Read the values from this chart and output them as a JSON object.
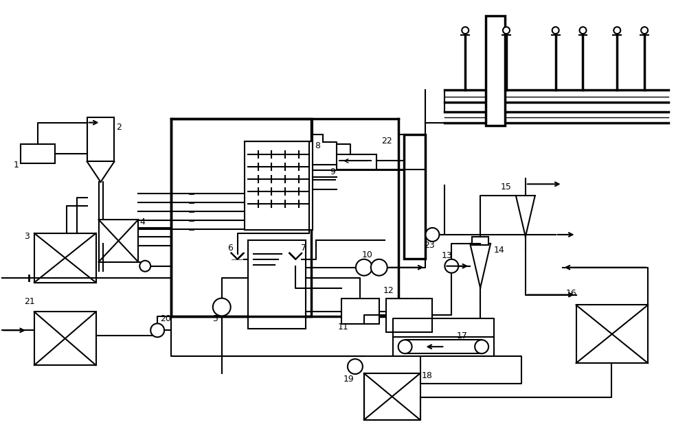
{
  "bg": "#ffffff",
  "lc": "#000000",
  "lw": 1.5,
  "lw2": 2.5
}
